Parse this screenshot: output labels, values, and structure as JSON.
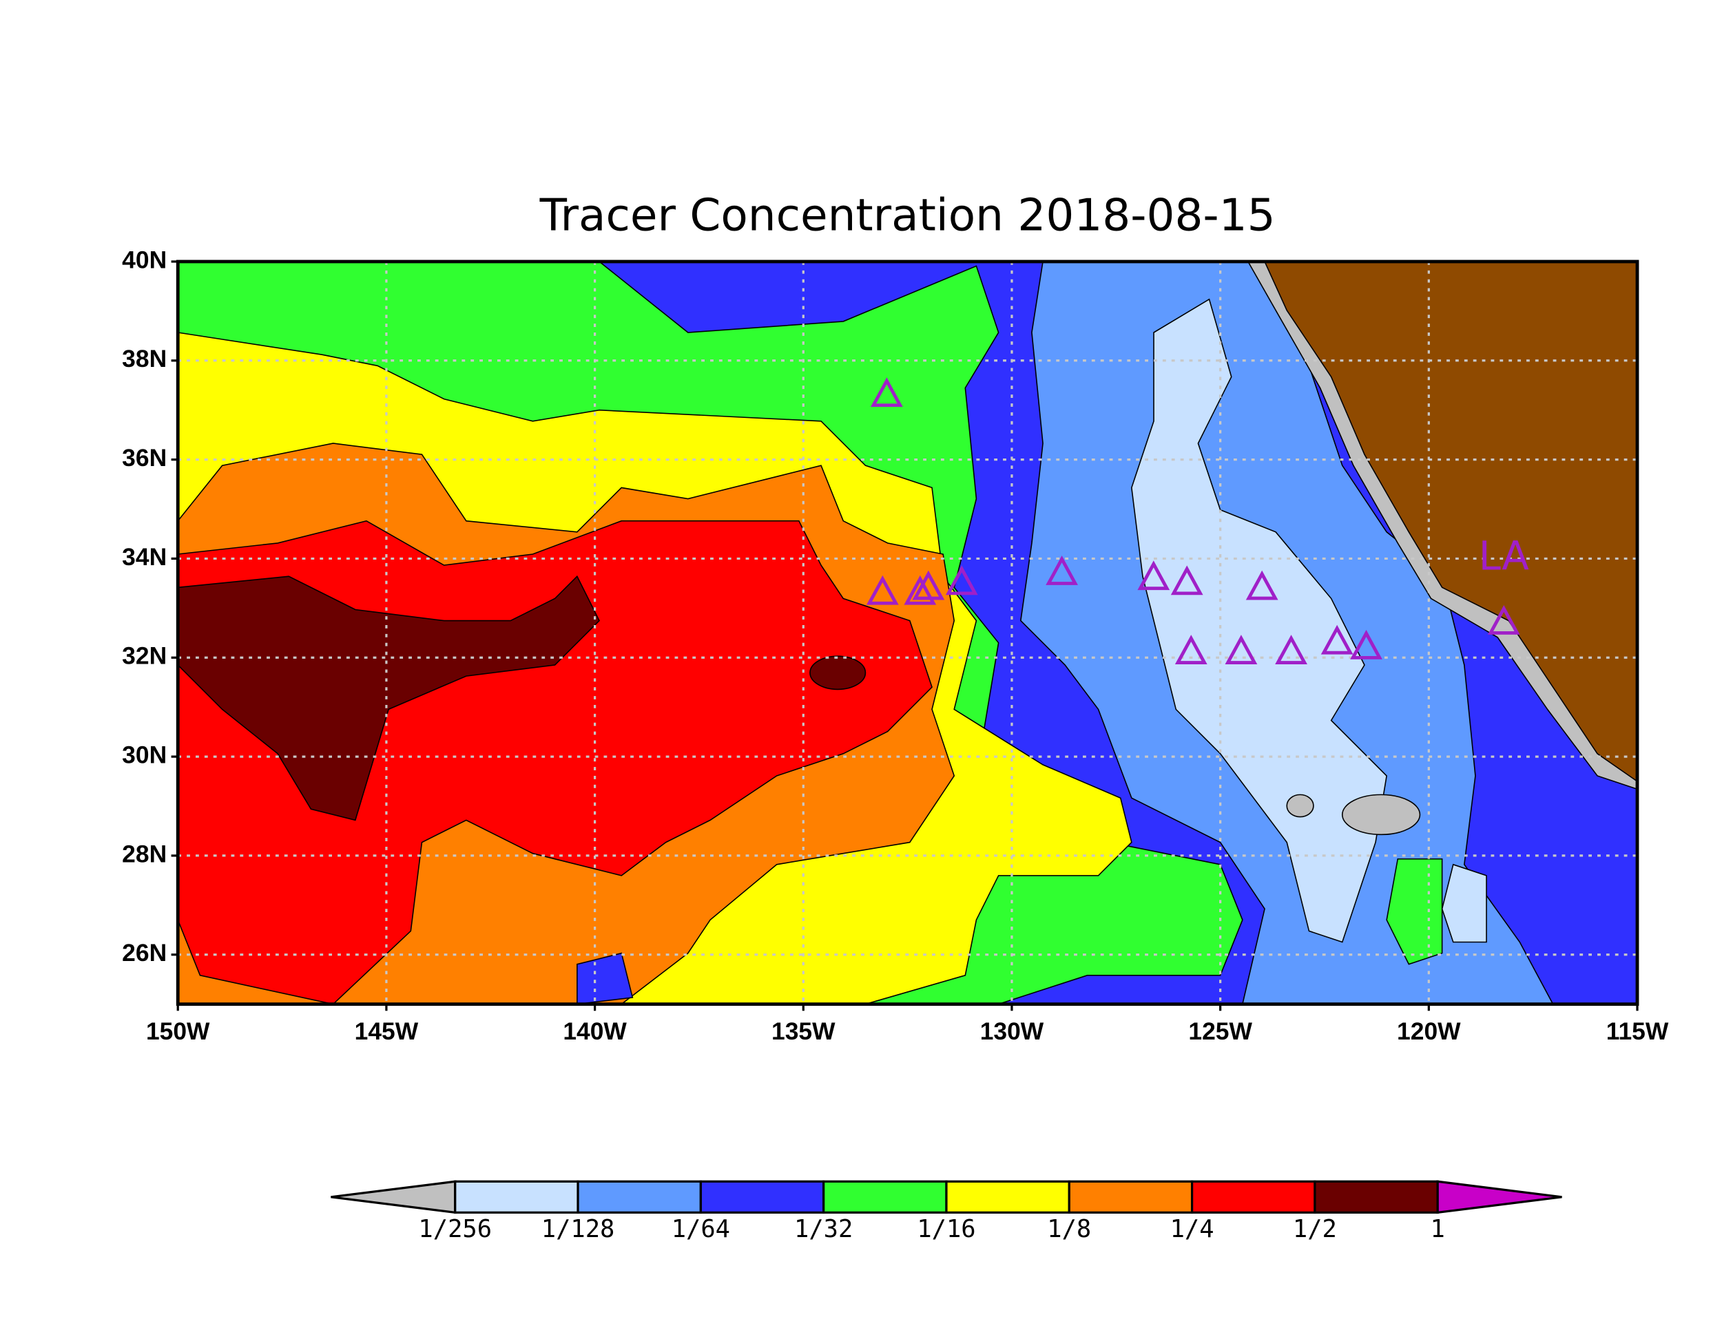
{
  "title": "Tracer Concentration 2018-08-15",
  "map": {
    "xlim": [
      -150,
      -115
    ],
    "ylim": [
      25,
      40
    ],
    "xticks": [
      {
        "value": -150,
        "label": "150W"
      },
      {
        "value": -145,
        "label": "145W"
      },
      {
        "value": -140,
        "label": "140W"
      },
      {
        "value": -135,
        "label": "135W"
      },
      {
        "value": -130,
        "label": "130W"
      },
      {
        "value": -125,
        "label": "125W"
      },
      {
        "value": -120,
        "label": "120W"
      },
      {
        "value": -115,
        "label": "115W"
      }
    ],
    "yticks": [
      {
        "value": 26,
        "label": "26N"
      },
      {
        "value": 28,
        "label": "28N"
      },
      {
        "value": 30,
        "label": "30N"
      },
      {
        "value": 32,
        "label": "32N"
      },
      {
        "value": 34,
        "label": "34N"
      },
      {
        "value": 36,
        "label": "36N"
      },
      {
        "value": 38,
        "label": "38N"
      },
      {
        "value": 40,
        "label": "40N"
      }
    ],
    "grid": true,
    "sites": {
      "color": "#a020c8",
      "lon": [
        -133.0,
        -133.1,
        -132.2,
        -132.0,
        -131.2,
        -128.8,
        -126.6,
        -125.8,
        -124.0,
        -125.7,
        -124.5,
        -123.3,
        -122.2,
        -121.5,
        -118.2
      ],
      "lat": [
        37.3,
        33.3,
        33.3,
        33.4,
        33.5,
        33.7,
        33.6,
        33.5,
        33.4,
        32.1,
        32.1,
        32.1,
        32.3,
        32.2,
        32.7
      ]
    },
    "city": {
      "label": "LA",
      "lon": -118.2,
      "lat": 34.0
    }
  },
  "colorbar": {
    "colors": [
      "#c0c0c0",
      "#c8e1ff",
      "#5f9aff",
      "#3030ff",
      "#30ff30",
      "#ffff00",
      "#ff8000",
      "#ff0000",
      "#6a0000",
      "#c800c8"
    ],
    "labels": [
      "1/256",
      "1/128",
      "1/64",
      "1/32",
      "1/16",
      "1/8",
      "1/4",
      "1/2",
      "1"
    ]
  }
}
